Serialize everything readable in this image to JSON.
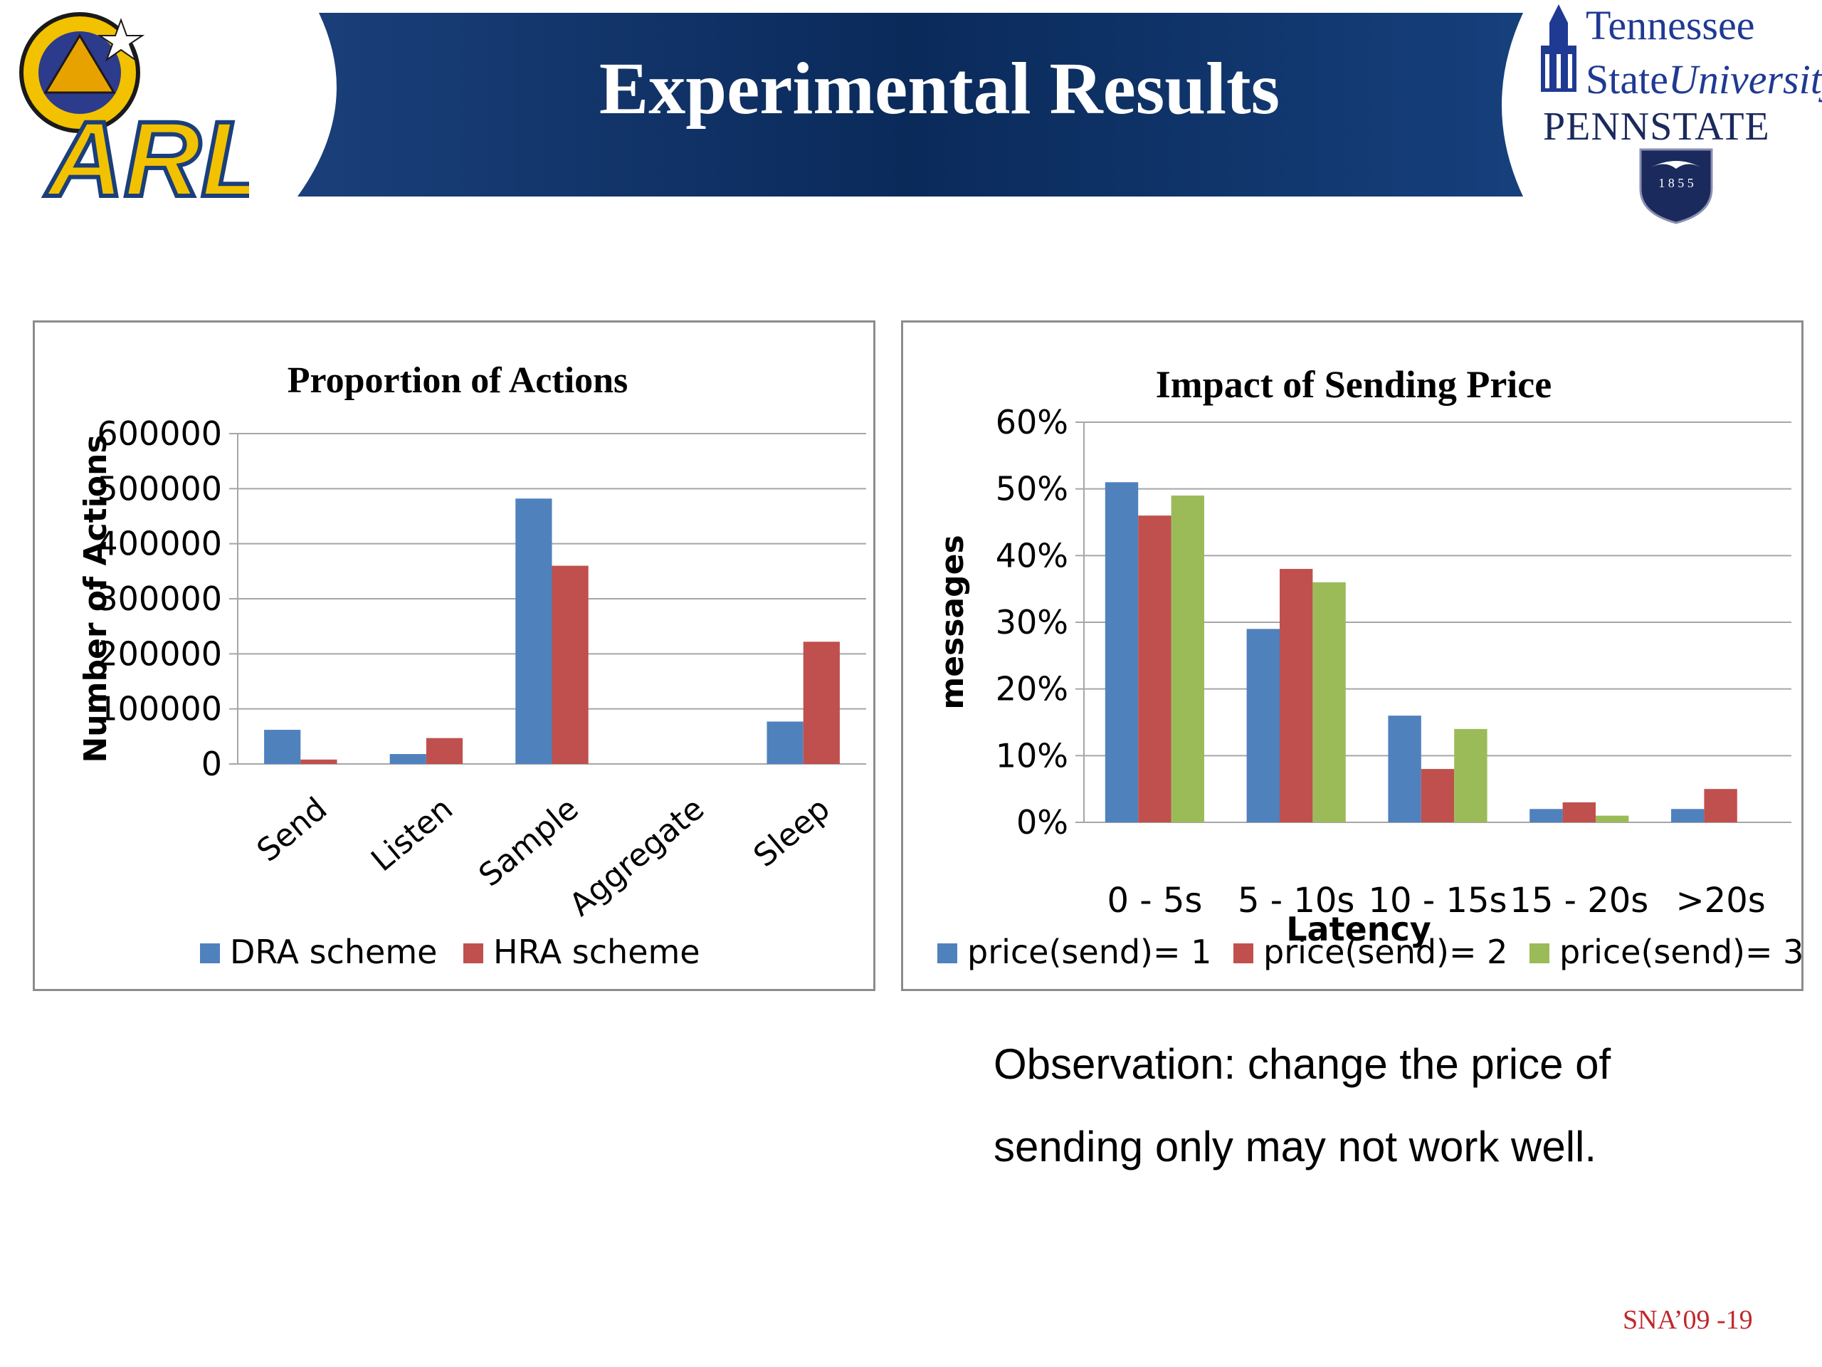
{
  "slide": {
    "title": "Experimental Results",
    "footer": "SNA’09 -19",
    "observation_lines": [
      "Observation: change the price of",
      "sending only may not work well."
    ]
  },
  "logos": {
    "arl_text": "ARL",
    "tsu_line1": "Tennessee",
    "tsu_line2_a": "State",
    "tsu_line2_b": "University",
    "psu_text": "PENNSTATE",
    "psu_year": "1 8 5 5"
  },
  "colors": {
    "banner": "#0b2d5e",
    "series_blue": "#4f81bd",
    "series_red": "#c0504d",
    "series_green": "#9bbb59",
    "grid": "#a6a6a6"
  },
  "chart_data": [
    {
      "type": "bar",
      "title": "Proportion of Actions",
      "xlabel": "",
      "ylabel": "Number of Actions",
      "ylim": [
        0,
        600000
      ],
      "yticks": [
        0,
        100000,
        200000,
        300000,
        400000,
        500000,
        600000
      ],
      "grid": true,
      "legend_position": "bottom",
      "categories": [
        "Send",
        "Listen",
        "Sample",
        "Aggregate",
        "Sleep"
      ],
      "series": [
        {
          "name": "DRA scheme",
          "color": "#4f81bd",
          "values": [
            62000,
            18000,
            482000,
            0,
            77000
          ]
        },
        {
          "name": "HRA scheme",
          "color": "#c0504d",
          "values": [
            8000,
            47000,
            360000,
            0,
            222000
          ]
        }
      ]
    },
    {
      "type": "bar",
      "title": "Impact of Sending Price",
      "xlabel": "Latency",
      "ylabel": "messages",
      "ylim": [
        0,
        60
      ],
      "yticks": [
        "0%",
        "10%",
        "20%",
        "30%",
        "40%",
        "50%",
        "60%"
      ],
      "grid": true,
      "legend_position": "bottom",
      "categories": [
        "0 - 5s",
        "5 - 10s",
        "10 - 15s",
        "15 - 20s",
        ">20s"
      ],
      "series": [
        {
          "name": "price(send)= 1",
          "color": "#4f81bd",
          "values": [
            51,
            29,
            16,
            2,
            2
          ]
        },
        {
          "name": "price(send)= 2",
          "color": "#c0504d",
          "values": [
            46,
            38,
            8,
            3,
            5
          ]
        },
        {
          "name": "price(send)= 3",
          "color": "#9bbb59",
          "values": [
            49,
            36,
            14,
            1,
            0
          ]
        }
      ]
    }
  ]
}
